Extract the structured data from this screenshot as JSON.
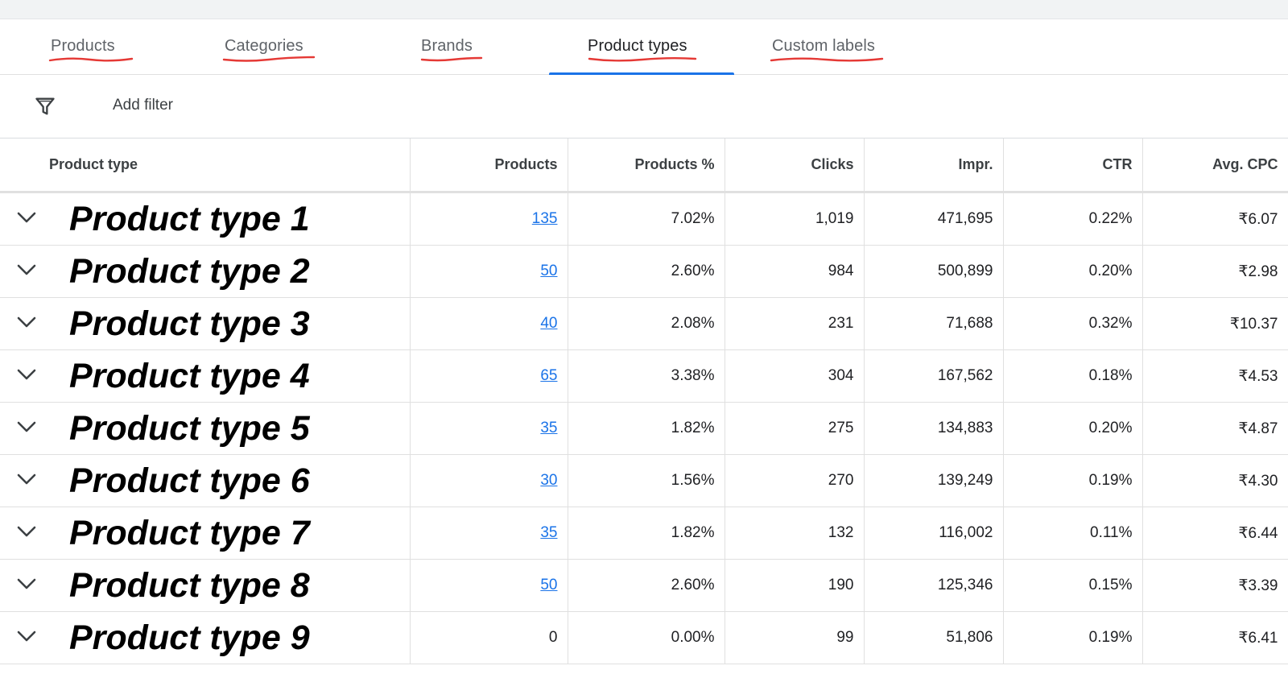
{
  "tabs": [
    {
      "label": "Products",
      "active": false
    },
    {
      "label": "Categories",
      "active": false
    },
    {
      "label": "Brands",
      "active": false
    },
    {
      "label": "Product types",
      "active": true
    },
    {
      "label": "Custom labels",
      "active": false
    }
  ],
  "filter": {
    "icon": "filter-icon",
    "label": "Add filter"
  },
  "table": {
    "columns": [
      "Product type",
      "Products",
      "Products %",
      "Clicks",
      "Impr.",
      "CTR",
      "Avg. CPC"
    ],
    "rows": [
      {
        "name": "Product type 1",
        "products": "135",
        "products_pct": "7.02%",
        "clicks": "1,019",
        "impr": "471,695",
        "ctr": "0.22%",
        "avg_cpc": "₹6.07"
      },
      {
        "name": "Product type 2",
        "products": "50",
        "products_pct": "2.60%",
        "clicks": "984",
        "impr": "500,899",
        "ctr": "0.20%",
        "avg_cpc": "₹2.98"
      },
      {
        "name": "Product type 3",
        "products": "40",
        "products_pct": "2.08%",
        "clicks": "231",
        "impr": "71,688",
        "ctr": "0.32%",
        "avg_cpc": "₹10.37"
      },
      {
        "name": "Product type 4",
        "products": "65",
        "products_pct": "3.38%",
        "clicks": "304",
        "impr": "167,562",
        "ctr": "0.18%",
        "avg_cpc": "₹4.53"
      },
      {
        "name": "Product type 5",
        "products": "35",
        "products_pct": "1.82%",
        "clicks": "275",
        "impr": "134,883",
        "ctr": "0.20%",
        "avg_cpc": "₹4.87"
      },
      {
        "name": "Product type 6",
        "products": "30",
        "products_pct": "1.56%",
        "clicks": "270",
        "impr": "139,249",
        "ctr": "0.19%",
        "avg_cpc": "₹4.30"
      },
      {
        "name": "Product type 7",
        "products": "35",
        "products_pct": "1.82%",
        "clicks": "132",
        "impr": "116,002",
        "ctr": "0.11%",
        "avg_cpc": "₹6.44"
      },
      {
        "name": "Product type 8",
        "products": "50",
        "products_pct": "2.60%",
        "clicks": "190",
        "impr": "125,346",
        "ctr": "0.15%",
        "avg_cpc": "₹3.39"
      },
      {
        "name": "Product type 9",
        "products": "0",
        "products_pct": "0.00%",
        "clicks": "99",
        "impr": "51,806",
        "ctr": "0.19%",
        "avg_cpc": "₹6.41"
      }
    ]
  },
  "colors": {
    "accent": "#1a73e8",
    "annotation": "#e53935"
  }
}
